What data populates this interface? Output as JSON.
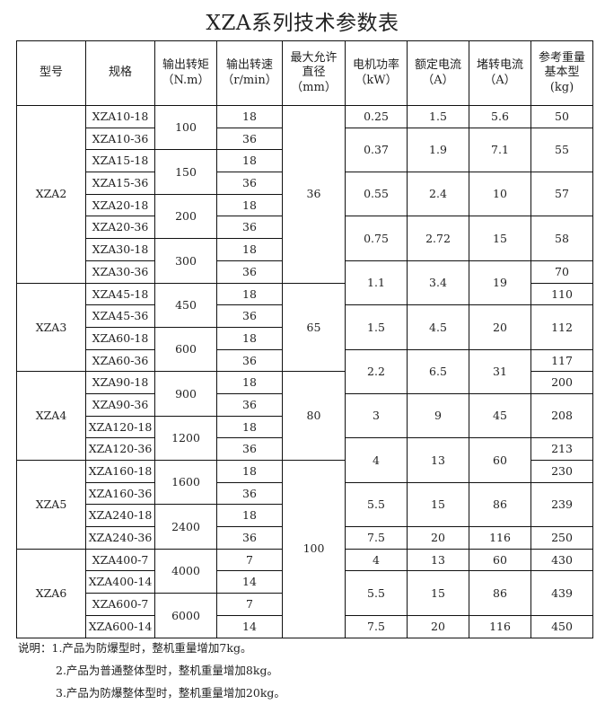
{
  "title": "XZA系列技术参数表",
  "table": {
    "headers": [
      [
        "型号"
      ],
      [
        "规格"
      ],
      [
        "输出转矩",
        "（N.m）"
      ],
      [
        "输出转速",
        "（r/min）"
      ],
      [
        "最大允许",
        "直径",
        "（mm）"
      ],
      [
        "电机功率",
        "（kW）"
      ],
      [
        "额定电流",
        "（A）"
      ],
      [
        "堵转电流",
        "（A）"
      ],
      [
        "参考重量",
        "基本型",
        "(kg)"
      ]
    ],
    "columns": [
      {
        "cells": [
          {
            "value": "XZA2",
            "span": 8
          },
          {
            "value": "XZA3",
            "span": 4
          },
          {
            "value": "XZA4",
            "span": 4
          },
          {
            "value": "XZA5",
            "span": 4
          },
          {
            "value": "XZA6",
            "span": 4
          }
        ]
      },
      {
        "cells": [
          {
            "value": "XZA10-18",
            "span": 1
          },
          {
            "value": "XZA10-36",
            "span": 1
          },
          {
            "value": "XZA15-18",
            "span": 1
          },
          {
            "value": "XZA15-36",
            "span": 1
          },
          {
            "value": "XZA20-18",
            "span": 1
          },
          {
            "value": "XZA20-36",
            "span": 1
          },
          {
            "value": "XZA30-18",
            "span": 1
          },
          {
            "value": "XZA30-36",
            "span": 1
          },
          {
            "value": "XZA45-18",
            "span": 1
          },
          {
            "value": "XZA45-36",
            "span": 1
          },
          {
            "value": "XZA60-18",
            "span": 1
          },
          {
            "value": "XZA60-36",
            "span": 1
          },
          {
            "value": "XZA90-18",
            "span": 1
          },
          {
            "value": "XZA90-36",
            "span": 1
          },
          {
            "value": "XZA120-18",
            "span": 1
          },
          {
            "value": "XZA120-36",
            "span": 1
          },
          {
            "value": "XZA160-18",
            "span": 1
          },
          {
            "value": "XZA160-36",
            "span": 1
          },
          {
            "value": "XZA240-18",
            "span": 1
          },
          {
            "value": "XZA240-36",
            "span": 1
          },
          {
            "value": "XZA400-7",
            "span": 1
          },
          {
            "value": "XZA400-14",
            "span": 1
          },
          {
            "value": "XZA600-7",
            "span": 1
          },
          {
            "value": "XZA600-14",
            "span": 1
          }
        ]
      },
      {
        "cells": [
          {
            "value": "100",
            "span": 2
          },
          {
            "value": "150",
            "span": 2
          },
          {
            "value": "200",
            "span": 2
          },
          {
            "value": "300",
            "span": 2
          },
          {
            "value": "450",
            "span": 2
          },
          {
            "value": "600",
            "span": 2
          },
          {
            "value": "900",
            "span": 2
          },
          {
            "value": "1200",
            "span": 2
          },
          {
            "value": "1600",
            "span": 2
          },
          {
            "value": "2400",
            "span": 2
          },
          {
            "value": "4000",
            "span": 2
          },
          {
            "value": "6000",
            "span": 2
          }
        ]
      },
      {
        "cells": [
          {
            "value": "18",
            "span": 1
          },
          {
            "value": "36",
            "span": 1
          },
          {
            "value": "18",
            "span": 1
          },
          {
            "value": "36",
            "span": 1
          },
          {
            "value": "18",
            "span": 1
          },
          {
            "value": "36",
            "span": 1
          },
          {
            "value": "18",
            "span": 1
          },
          {
            "value": "36",
            "span": 1
          },
          {
            "value": "18",
            "span": 1
          },
          {
            "value": "36",
            "span": 1
          },
          {
            "value": "18",
            "span": 1
          },
          {
            "value": "36",
            "span": 1
          },
          {
            "value": "18",
            "span": 1
          },
          {
            "value": "36",
            "span": 1
          },
          {
            "value": "18",
            "span": 1
          },
          {
            "value": "36",
            "span": 1
          },
          {
            "value": "18",
            "span": 1
          },
          {
            "value": "36",
            "span": 1
          },
          {
            "value": "18",
            "span": 1
          },
          {
            "value": "36",
            "span": 1
          },
          {
            "value": "7",
            "span": 1
          },
          {
            "value": "14",
            "span": 1
          },
          {
            "value": "7",
            "span": 1
          },
          {
            "value": "14",
            "span": 1
          }
        ]
      },
      {
        "cells": [
          {
            "value": "36",
            "span": 8
          },
          {
            "value": "65",
            "span": 4
          },
          {
            "value": "80",
            "span": 4
          },
          {
            "value": "100",
            "span": 8
          }
        ]
      },
      {
        "cells": [
          {
            "value": "0.25",
            "span": 1
          },
          {
            "value": "0.37",
            "span": 2
          },
          {
            "value": "0.55",
            "span": 2
          },
          {
            "value": "0.75",
            "span": 2
          },
          {
            "value": "1.1",
            "span": 2
          },
          {
            "value": "1.5",
            "span": 2
          },
          {
            "value": "2.2",
            "span": 2
          },
          {
            "value": "3",
            "span": 2
          },
          {
            "value": "4",
            "span": 2
          },
          {
            "value": "5.5",
            "span": 2
          },
          {
            "value": "7.5",
            "span": 1
          },
          {
            "value": "4",
            "span": 1
          },
          {
            "value": "5.5",
            "span": 2
          },
          {
            "value": "7.5",
            "span": 1
          }
        ]
      },
      {
        "cells": [
          {
            "value": "1.5",
            "span": 1
          },
          {
            "value": "1.9",
            "span": 2
          },
          {
            "value": "2.4",
            "span": 2
          },
          {
            "value": "2.72",
            "span": 2
          },
          {
            "value": "3.4",
            "span": 2
          },
          {
            "value": "4.5",
            "span": 2
          },
          {
            "value": "6.5",
            "span": 2
          },
          {
            "value": "9",
            "span": 2
          },
          {
            "value": "13",
            "span": 2
          },
          {
            "value": "15",
            "span": 2
          },
          {
            "value": "20",
            "span": 1
          },
          {
            "value": "13",
            "span": 1
          },
          {
            "value": "15",
            "span": 2
          },
          {
            "value": "20",
            "span": 1
          }
        ]
      },
      {
        "cells": [
          {
            "value": "5.6",
            "span": 1
          },
          {
            "value": "7.1",
            "span": 2
          },
          {
            "value": "10",
            "span": 2
          },
          {
            "value": "15",
            "span": 2
          },
          {
            "value": "19",
            "span": 2
          },
          {
            "value": "20",
            "span": 2
          },
          {
            "value": "31",
            "span": 2
          },
          {
            "value": "45",
            "span": 2
          },
          {
            "value": "60",
            "span": 2
          },
          {
            "value": "86",
            "span": 2
          },
          {
            "value": "116",
            "span": 1
          },
          {
            "value": "60",
            "span": 1
          },
          {
            "value": "86",
            "span": 2
          },
          {
            "value": "116",
            "span": 1
          }
        ]
      },
      {
        "cells": [
          {
            "value": "50",
            "span": 1
          },
          {
            "value": "55",
            "span": 2
          },
          {
            "value": "57",
            "span": 2
          },
          {
            "value": "58",
            "span": 2
          },
          {
            "value": "70",
            "span": 1
          },
          {
            "value": "110",
            "span": 1
          },
          {
            "value": "112",
            "span": 2
          },
          {
            "value": "117",
            "span": 1
          },
          {
            "value": "200",
            "span": 1
          },
          {
            "value": "208",
            "span": 2
          },
          {
            "value": "213",
            "span": 1
          },
          {
            "value": "230",
            "span": 1
          },
          {
            "value": "239",
            "span": 2
          },
          {
            "value": "250",
            "span": 1
          },
          {
            "value": "430",
            "span": 1
          },
          {
            "value": "439",
            "span": 2
          },
          {
            "value": "450",
            "span": 1
          }
        ]
      }
    ]
  },
  "notes": [
    "说明：1.产品为防爆型时，整机重量增加7kg。",
    "2.产品为普通整体型时，整机重量增加8kg。",
    "3.产品为防爆整体型时，整机重量增加20kg。"
  ]
}
